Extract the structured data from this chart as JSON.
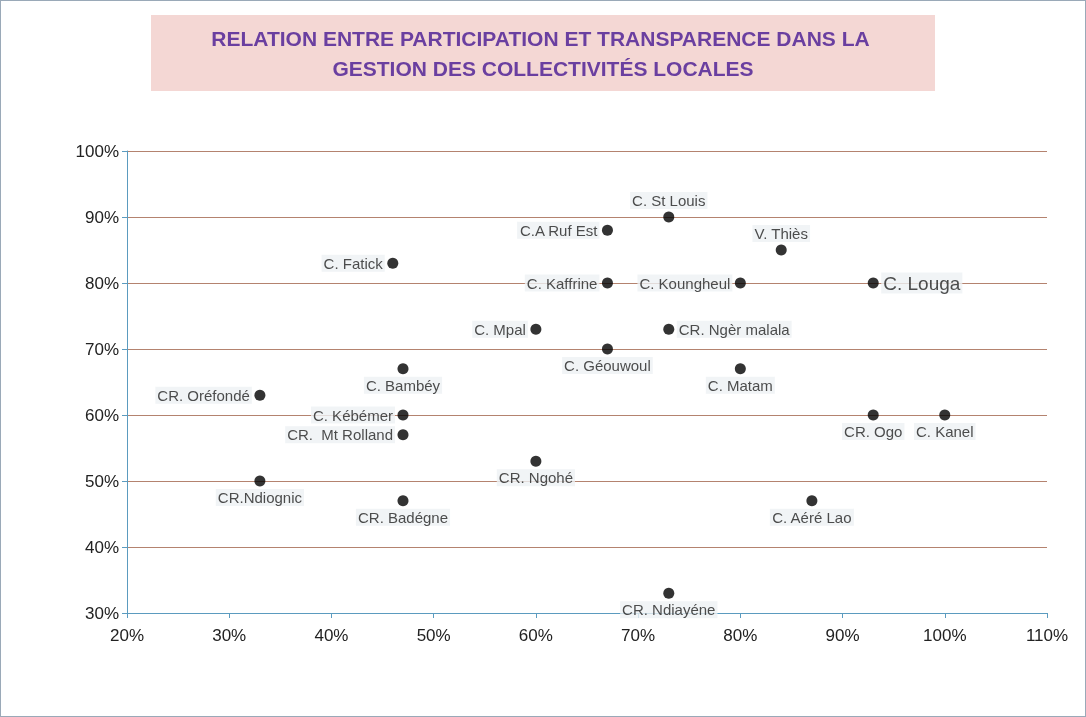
{
  "chart_data": {
    "type": "scatter",
    "title": "RELATION ENTRE PARTICIPATION ET TRANSPARENCE DANS LA GESTION DES COLLECTIVITÉS LOCALES",
    "x": [
      73,
      67,
      46,
      67,
      84,
      80,
      93,
      60,
      73,
      67,
      47,
      80,
      33,
      47,
      47,
      33,
      60,
      47,
      93,
      100,
      87,
      73
    ],
    "values": [
      90,
      88,
      83,
      80,
      85,
      80,
      80,
      73,
      73,
      70,
      67,
      67,
      63,
      60,
      57,
      50,
      53,
      47,
      60,
      60,
      47,
      33
    ],
    "color": "#000000",
    "marker": "circle",
    "grid": "y",
    "xlim": [
      20,
      110
    ],
    "xticks": [
      {
        "value": 20,
        "label": "20%"
      },
      {
        "value": 30,
        "label": "30%"
      },
      {
        "value": 40,
        "label": "40%"
      },
      {
        "value": 50,
        "label": "50%"
      },
      {
        "value": 60,
        "label": "60%"
      },
      {
        "value": 70,
        "label": "70%"
      },
      {
        "value": 80,
        "label": "80%"
      },
      {
        "value": 90,
        "label": "90%"
      },
      {
        "value": 100,
        "label": "100%"
      },
      {
        "value": 110,
        "label": "110%"
      }
    ],
    "ylim": [
      30,
      100
    ],
    "yticks": [
      {
        "value": 30,
        "label": "30%"
      },
      {
        "value": 40,
        "label": "40%"
      },
      {
        "value": 50,
        "label": "50%"
      },
      {
        "value": 60,
        "label": "60%"
      },
      {
        "value": 70,
        "label": "70%"
      },
      {
        "value": 80,
        "label": "80%"
      },
      {
        "value": 90,
        "label": "90%"
      },
      {
        "value": 100,
        "label": "100%"
      }
    ],
    "annotations": [
      {
        "text": "C. St Louis",
        "x": 73,
        "y": 90
      },
      {
        "text": "C.A Ruf Est",
        "x": 67,
        "y": 88
      },
      {
        "text": "C. Fatick",
        "x": 46,
        "y": 83
      },
      {
        "text": "C. Kaffrine",
        "x": 67,
        "y": 80
      },
      {
        "text": "V. Thiès",
        "x": 84,
        "y": 85
      },
      {
        "text": "C. Koungheul",
        "x": 80,
        "y": 80
      },
      {
        "text": "C. Louga",
        "x": 93,
        "y": 80
      },
      {
        "text": "C. Mpal",
        "x": 60,
        "y": 73
      },
      {
        "text": "CR. Ngèr malala",
        "x": 73,
        "y": 73
      },
      {
        "text": "C. Géouwoul",
        "x": 67,
        "y": 70
      },
      {
        "text": "C. Bambéy",
        "x": 47,
        "y": 67
      },
      {
        "text": "C. Matam",
        "x": 80,
        "y": 67
      },
      {
        "text": "CR. Oréfondé",
        "x": 33,
        "y": 63
      },
      {
        "text": "C. Kébémer",
        "x": 47,
        "y": 60
      },
      {
        "text": "CR.  Mt Rolland",
        "x": 47,
        "y": 57
      },
      {
        "text": "CR.Ndiognic",
        "x": 33,
        "y": 50
      },
      {
        "text": "CR. Ngohé",
        "x": 60,
        "y": 53
      },
      {
        "text": "CR. Badégne",
        "x": 47,
        "y": 47
      },
      {
        "text": "CR. Ogo",
        "x": 93,
        "y": 60
      },
      {
        "text": "C. Kanel",
        "x": 100,
        "y": 60
      },
      {
        "text": "C. Aéré Lao",
        "x": 87,
        "y": 47
      },
      {
        "text": "CR. Ndiayéne",
        "x": 73,
        "y": 33
      }
    ]
  }
}
